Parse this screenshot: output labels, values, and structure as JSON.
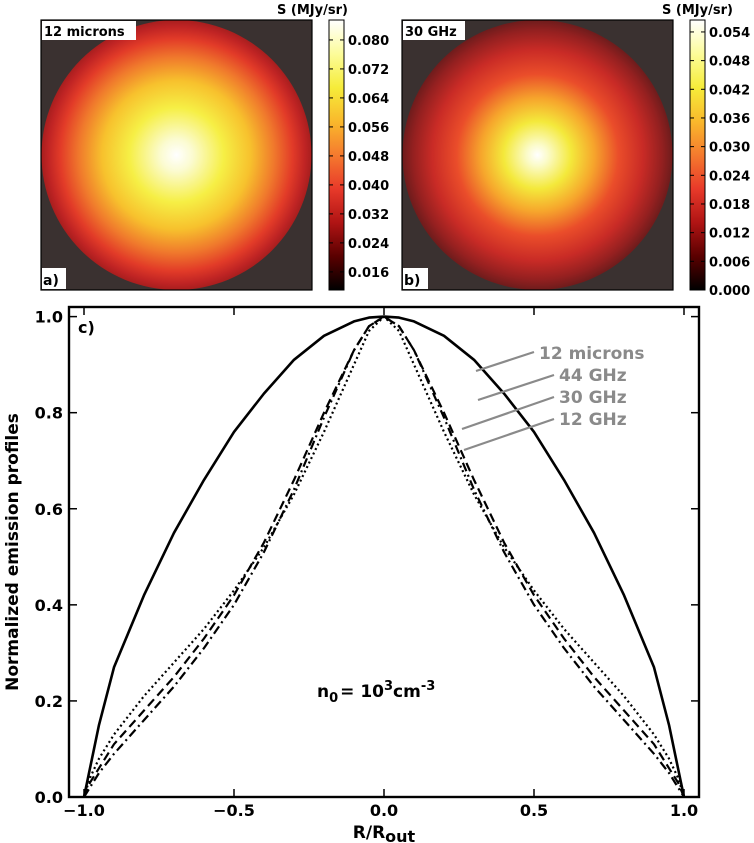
{
  "chart_data": [
    {
      "type": "heatmap",
      "panel_label": "a)",
      "inset_label": "12 microns",
      "colorbar_title": "S (MJy/sr)",
      "colorbar_ticks": [
        0.08,
        0.072,
        0.064,
        0.056,
        0.048,
        0.04,
        0.032,
        0.024,
        0.016
      ],
      "colorbar_tick_labels": [
        "0.080",
        "0.072",
        "0.064",
        "0.056",
        "0.048",
        "0.040",
        "0.032",
        "0.024",
        "0.016"
      ],
      "vmin": 0.011,
      "vmax": 0.0855,
      "colormap": [
        "#000000",
        "#5a0000",
        "#b01414",
        "#e83a2a",
        "#f57a2e",
        "#f9b92c",
        "#f6ec3a",
        "#fcfc9a",
        "#ffffff"
      ]
    },
    {
      "type": "heatmap",
      "panel_label": "b)",
      "inset_label": "30 GHz",
      "colorbar_title": "S (MJy/sr)",
      "colorbar_ticks": [
        0.054,
        0.048,
        0.042,
        0.036,
        0.03,
        0.024,
        0.018,
        0.012,
        0.006,
        0.0
      ],
      "colorbar_tick_labels": [
        "0.054",
        "0.048",
        "0.042",
        "0.036",
        "0.030",
        "0.024",
        "0.018",
        "0.012",
        "0.006",
        "0.000"
      ],
      "vmin": 0.0,
      "vmax": 0.0565,
      "colormap": [
        "#000000",
        "#5a0000",
        "#b01414",
        "#e83a2a",
        "#f57a2e",
        "#f9b92c",
        "#f6ec3a",
        "#fcfc9a",
        "#ffffff"
      ]
    },
    {
      "type": "line",
      "panel_label": "c)",
      "xlabel_main": "R/R",
      "xlabel_sub": "out",
      "ylabel": "Normalized emission profiles",
      "xlim": [
        -1.05,
        1.05
      ],
      "ylim": [
        0.0,
        1.02
      ],
      "xticks": [
        -1.0,
        -0.5,
        0.0,
        0.5,
        1.0
      ],
      "xtick_labels": [
        "−1.0",
        "−0.5",
        "0.0",
        "0.5",
        "1.0"
      ],
      "yticks": [
        0.0,
        0.2,
        0.4,
        0.6,
        0.8,
        1.0
      ],
      "ytick_labels": [
        "0.0",
        "0.2",
        "0.4",
        "0.6",
        "0.8",
        "1.0"
      ],
      "annotation": {
        "n": "n",
        "n_sub": "0",
        "eq": "= 10",
        "exp": "3",
        "unit": "cm",
        "unit_exp": "-3"
      },
      "series": [
        {
          "name": "12 microns",
          "style": "solid",
          "x": [
            -1.0,
            -0.99,
            -0.97,
            -0.95,
            -0.9,
            -0.8,
            -0.7,
            -0.6,
            -0.5,
            -0.4,
            -0.3,
            -0.2,
            -0.1,
            -0.05,
            0.0,
            0.05,
            0.1,
            0.2,
            0.3,
            0.4,
            0.5,
            0.6,
            0.7,
            0.8,
            0.9,
            0.95,
            0.97,
            0.99,
            1.0
          ],
          "y": [
            0.0,
            0.03,
            0.09,
            0.15,
            0.27,
            0.42,
            0.55,
            0.66,
            0.76,
            0.84,
            0.91,
            0.96,
            0.99,
            0.998,
            1.0,
            0.998,
            0.99,
            0.96,
            0.91,
            0.84,
            0.76,
            0.66,
            0.55,
            0.42,
            0.27,
            0.15,
            0.09,
            0.03,
            0.0
          ]
        },
        {
          "name": "44 GHz",
          "style": "dashdot",
          "x": [
            -1.0,
            -0.98,
            -0.95,
            -0.9,
            -0.8,
            -0.7,
            -0.6,
            -0.5,
            -0.4,
            -0.3,
            -0.2,
            -0.15,
            -0.1,
            -0.05,
            0.0,
            0.05,
            0.1,
            0.15,
            0.2,
            0.3,
            0.4,
            0.5,
            0.6,
            0.7,
            0.8,
            0.9,
            0.95,
            0.98,
            1.0
          ],
          "y": [
            0.0,
            0.02,
            0.05,
            0.09,
            0.16,
            0.23,
            0.31,
            0.4,
            0.51,
            0.64,
            0.79,
            0.86,
            0.93,
            0.98,
            1.0,
            0.98,
            0.93,
            0.86,
            0.79,
            0.64,
            0.51,
            0.4,
            0.31,
            0.23,
            0.16,
            0.09,
            0.05,
            0.02,
            0.0
          ]
        },
        {
          "name": "30 GHz",
          "style": "dashed",
          "x": [
            -1.0,
            -0.98,
            -0.95,
            -0.9,
            -0.8,
            -0.7,
            -0.6,
            -0.5,
            -0.4,
            -0.3,
            -0.2,
            -0.1,
            -0.05,
            0.0,
            0.05,
            0.1,
            0.2,
            0.3,
            0.4,
            0.5,
            0.6,
            0.7,
            0.8,
            0.9,
            0.95,
            0.98,
            1.0
          ],
          "y": [
            0.0,
            0.03,
            0.06,
            0.11,
            0.18,
            0.25,
            0.33,
            0.42,
            0.53,
            0.66,
            0.8,
            0.93,
            0.98,
            1.0,
            0.98,
            0.93,
            0.8,
            0.66,
            0.53,
            0.42,
            0.33,
            0.25,
            0.18,
            0.11,
            0.06,
            0.03,
            0.0
          ]
        },
        {
          "name": "12 GHz",
          "style": "dotted",
          "x": [
            -1.0,
            -0.98,
            -0.95,
            -0.9,
            -0.8,
            -0.7,
            -0.6,
            -0.5,
            -0.4,
            -0.3,
            -0.2,
            -0.1,
            -0.05,
            0.0,
            0.05,
            0.1,
            0.2,
            0.3,
            0.4,
            0.5,
            0.6,
            0.7,
            0.8,
            0.9,
            0.95,
            0.98,
            1.0
          ],
          "y": [
            0.0,
            0.04,
            0.08,
            0.13,
            0.21,
            0.28,
            0.35,
            0.43,
            0.52,
            0.63,
            0.76,
            0.9,
            0.97,
            1.0,
            0.97,
            0.9,
            0.76,
            0.63,
            0.52,
            0.43,
            0.35,
            0.28,
            0.21,
            0.13,
            0.08,
            0.04,
            0.0
          ]
        }
      ],
      "legend": {
        "placement": "top-right",
        "color": "#8a8a8a",
        "items": [
          "12 microns",
          "44 GHz",
          "30 GHz",
          "12 GHz"
        ]
      }
    }
  ]
}
